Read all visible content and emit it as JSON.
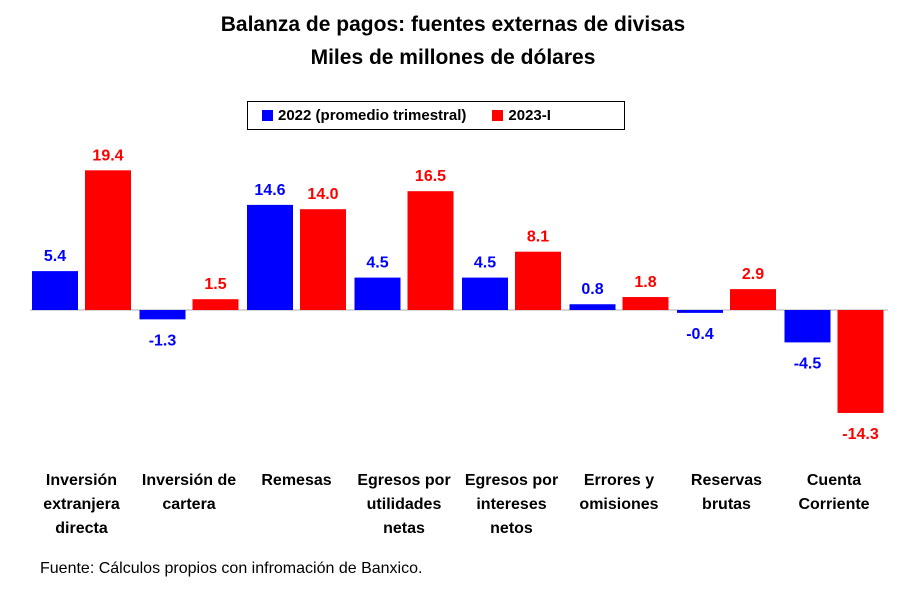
{
  "title_line1": "Balanza de pagos: fuentes externas de divisas",
  "title_line2": "Miles de millones de dólares",
  "source": "Fuente: Cálculos propios con infromación de Banxico.",
  "colors": {
    "series_2022": "#0000ff",
    "series_2023": "#ff0000"
  },
  "chart_data": {
    "type": "bar",
    "title": "Balanza de pagos: fuentes externas de divisas",
    "subtitle": "Miles de millones de dólares",
    "categories": [
      [
        "Inversión",
        "extranjera",
        "directa"
      ],
      [
        "Inversión de",
        "cartera"
      ],
      [
        "Remesas"
      ],
      [
        "Egresos por",
        "utilidades",
        "netas"
      ],
      [
        "Egresos por",
        "intereses",
        "netos"
      ],
      [
        "Errores y",
        "omisiones"
      ],
      [
        "Reservas",
        "brutas"
      ],
      [
        "Cuenta",
        "Corriente"
      ]
    ],
    "series": [
      {
        "name": "2022 (promedio trimestral)",
        "color": "#0000ff",
        "values": [
          5.4,
          -1.3,
          14.6,
          4.5,
          4.5,
          0.8,
          -0.4,
          -4.5
        ],
        "labels": [
          "5.4",
          "-1.3",
          "14.6",
          "4.5",
          "4.5",
          "0.8",
          "-0.4",
          "-4.5"
        ]
      },
      {
        "name": "2023-I",
        "color": "#ff0000",
        "values": [
          19.4,
          1.5,
          14.0,
          16.5,
          8.1,
          1.8,
          2.9,
          -14.3
        ],
        "labels": [
          "19.4",
          "1.5",
          "14.0",
          "16.5",
          "8.1",
          "1.8",
          "2.9",
          "-14.3"
        ]
      }
    ],
    "legend_position": "top-center",
    "grid": false,
    "axes_visible": false
  }
}
